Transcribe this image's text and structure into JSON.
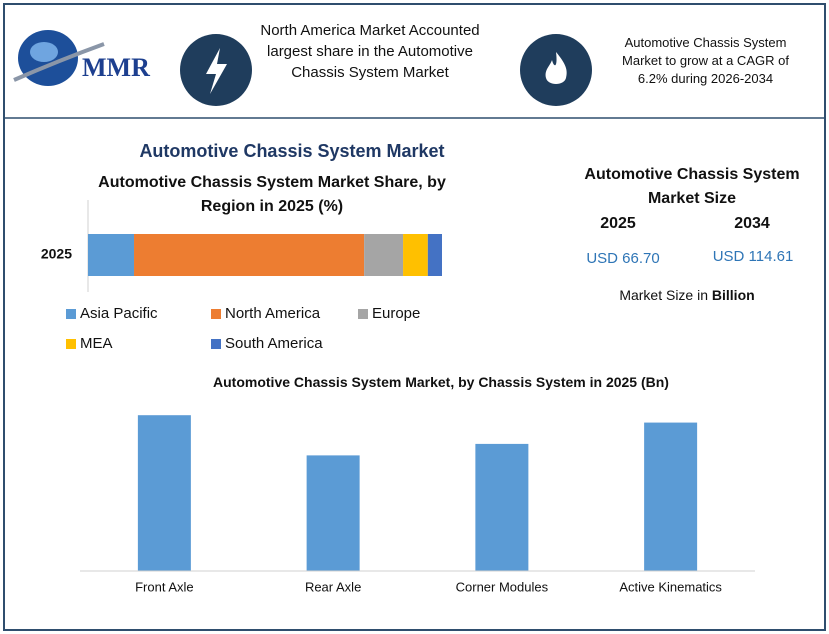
{
  "header": {
    "logo": "MMR",
    "highlight_1": "North America Market Accounted largest share in the Automotive Chassis System Market",
    "highlight_2": "Automotive Chassis System Market to grow at a CAGR of 6.2% during 2026-2034"
  },
  "title": "Automotive Chassis System Market",
  "market_size": {
    "title": "Automotive Chassis System Market Size",
    "years": [
      "2025",
      "2034"
    ],
    "values": [
      "USD 66.70",
      "USD 114.61"
    ],
    "unit_prefix": "Market Size in",
    "unit": "Billion"
  },
  "chart_data": [
    {
      "type": "bar",
      "orientation": "horizontal",
      "stacked": true,
      "title": "Automotive Chassis System Market Share, by Region in 2025 (%)",
      "categories": [
        "2025"
      ],
      "xlim": [
        0,
        100
      ],
      "series": [
        {
          "name": "Asia Pacific",
          "color": "#5b9bd5",
          "values": [
            13
          ]
        },
        {
          "name": "North America",
          "color": "#ed7d31",
          "values": [
            65
          ]
        },
        {
          "name": "Europe",
          "color": "#a5a5a5",
          "values": [
            11
          ]
        },
        {
          "name": "MEA",
          "color": "#ffc000",
          "values": [
            7
          ]
        },
        {
          "name": "South America",
          "color": "#4472c4",
          "values": [
            4
          ]
        }
      ]
    },
    {
      "type": "bar",
      "orientation": "vertical",
      "title": "Automotive Chassis System Market, by Chassis System in 2025 (Bn)",
      "categories": [
        "Front Axle",
        "Rear Axle",
        "Corner Modules",
        "Active Kinematics"
      ],
      "values": [
        19.0,
        14.1,
        15.5,
        18.1
      ],
      "color": "#5b9bd5",
      "ylim": [
        0,
        20
      ]
    }
  ]
}
